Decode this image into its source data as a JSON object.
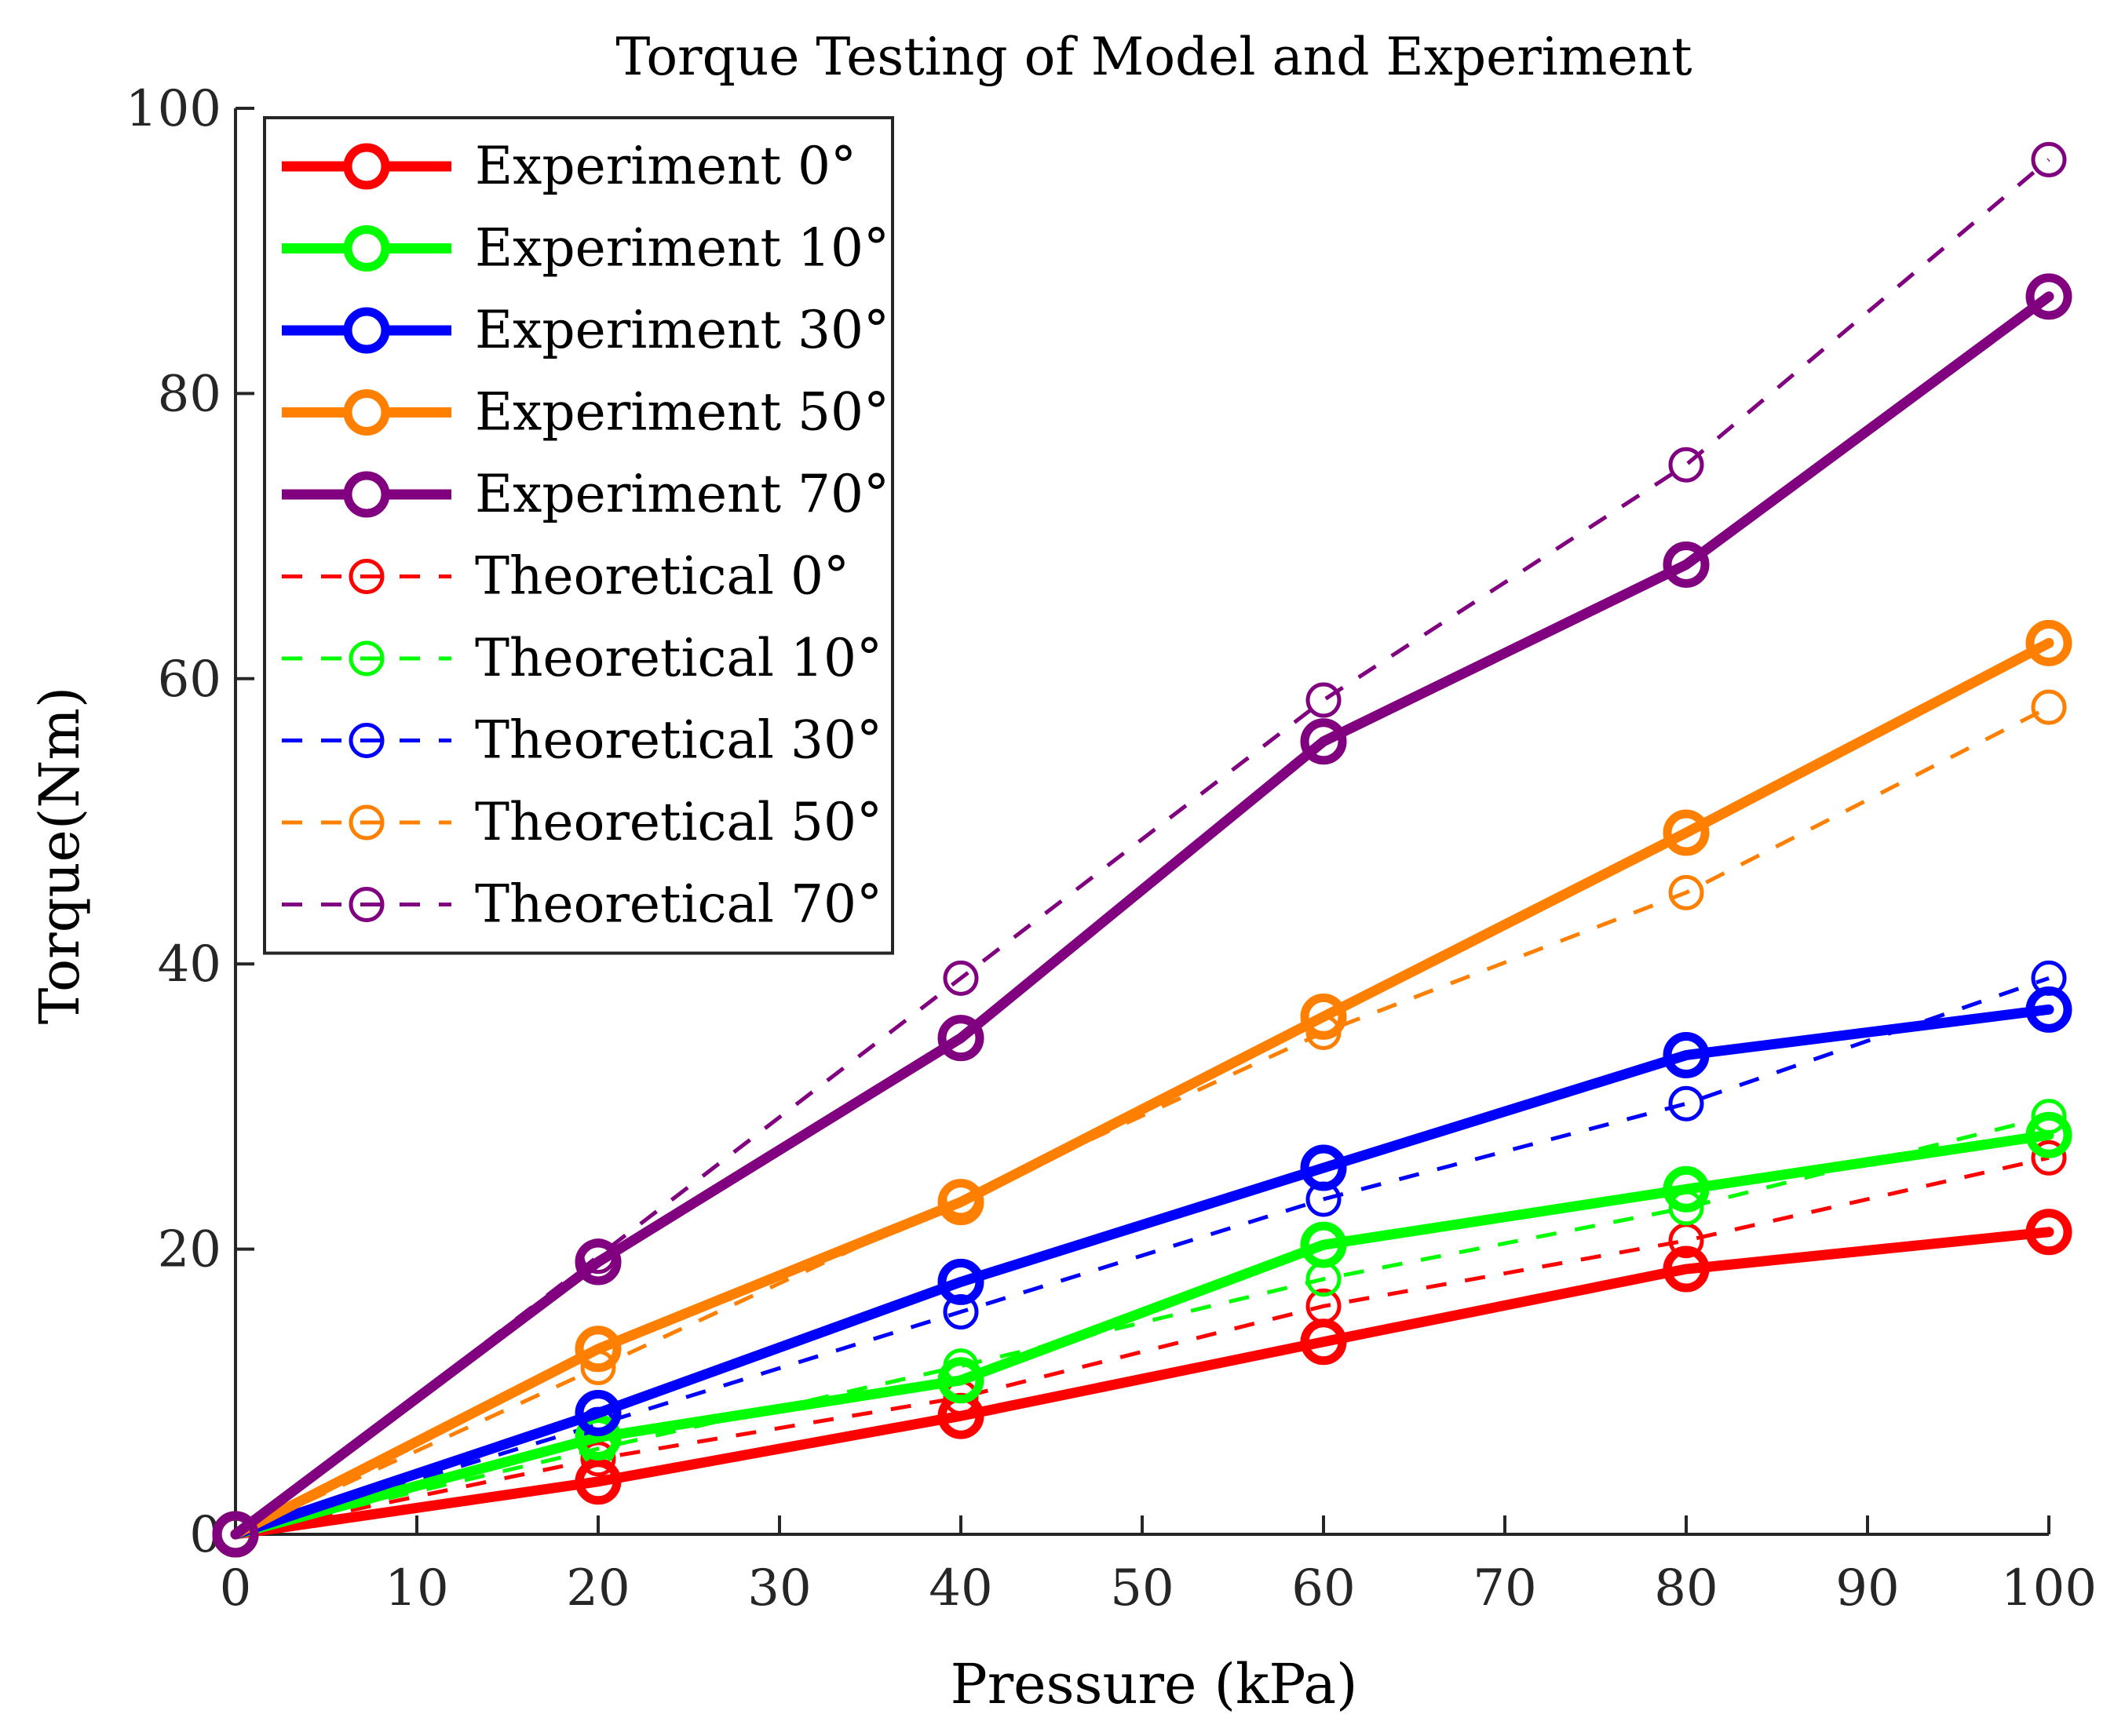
{
  "chart_data": {
    "type": "line",
    "title": "Torque Testing of Model and Experiment",
    "xlabel": "Pressure (kPa)",
    "ylabel": "Torque(Nm)",
    "xlim": [
      0,
      100
    ],
    "ylim": [
      0,
      100
    ],
    "xticks": [
      0,
      10,
      20,
      30,
      40,
      50,
      60,
      70,
      80,
      90,
      100
    ],
    "yticks": [
      0,
      20,
      40,
      60,
      80,
      100
    ],
    "grid": false,
    "legend_position": "top-left",
    "x": [
      0,
      20,
      40,
      60,
      80,
      100
    ],
    "series": [
      {
        "name": "Experiment 0°",
        "color": "#ff0000",
        "style": "solid",
        "values": [
          0,
          3.7,
          8.3,
          13.5,
          18.6,
          21.2
        ]
      },
      {
        "name": "Experiment 10°",
        "color": "#00ff00",
        "style": "solid",
        "values": [
          0,
          6.8,
          10.8,
          20.3,
          24.2,
          28.0
        ]
      },
      {
        "name": "Experiment 30°",
        "color": "#0000ff",
        "style": "solid",
        "values": [
          0,
          8.5,
          17.7,
          25.7,
          33.6,
          36.8
        ]
      },
      {
        "name": "Experiment 50°",
        "color": "#ff8000",
        "style": "solid",
        "values": [
          0,
          13.0,
          23.3,
          36.3,
          49.2,
          62.5
        ]
      },
      {
        "name": "Experiment 70°",
        "color": "#800080",
        "style": "solid",
        "values": [
          0,
          19.1,
          34.8,
          55.6,
          68.0,
          86.8
        ]
      },
      {
        "name": "Theoretical 0°",
        "color": "#ff0000",
        "style": "dashed",
        "values": [
          0,
          5.3,
          9.6,
          16.0,
          20.6,
          26.4
        ]
      },
      {
        "name": "Theoretical 10°",
        "color": "#00ff00",
        "style": "dashed",
        "values": [
          0,
          6.0,
          11.8,
          17.9,
          22.9,
          29.3
        ]
      },
      {
        "name": "Theoretical 30°",
        "color": "#0000ff",
        "style": "dashed",
        "values": [
          0,
          7.7,
          15.6,
          23.5,
          30.2,
          39.0
        ]
      },
      {
        "name": "Theoretical 50°",
        "color": "#ff8000",
        "style": "dashed",
        "values": [
          0,
          11.7,
          23.5,
          35.2,
          45.0,
          58.0
        ]
      },
      {
        "name": "Theoretical 70°",
        "color": "#800080",
        "style": "dashed",
        "values": [
          0,
          19.5,
          39.0,
          58.5,
          75.0,
          96.4
        ]
      }
    ]
  }
}
